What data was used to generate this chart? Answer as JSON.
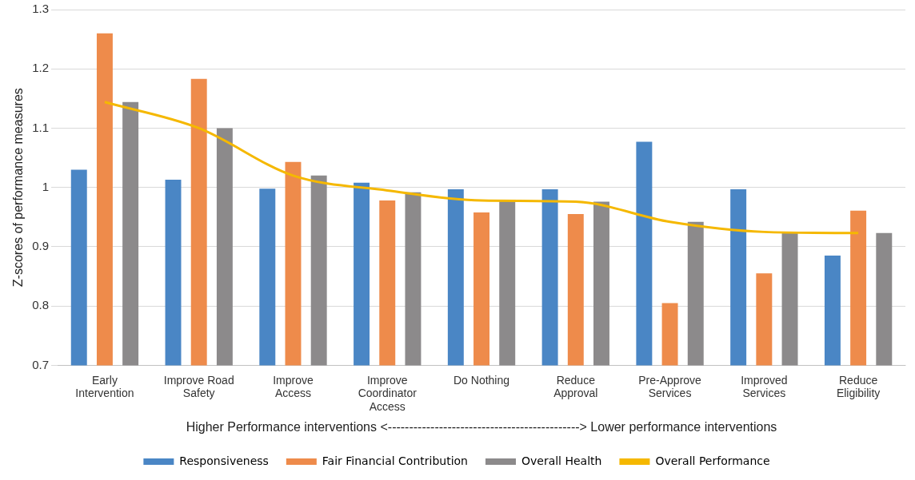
{
  "chart_data": {
    "type": "bar",
    "ylabel": "Z-scores of performance measures",
    "xlabel": "Higher Performance interventions <---------------------------------------------> Lower performance interventions",
    "categories": [
      "Early Intervention",
      "Improve Road Safety",
      "Improve Access",
      "Improve Coordinator Access",
      "Do Nothing",
      "Reduce Approval",
      "Pre-Approve Services",
      "Improved Services",
      "Reduce Eligibility"
    ],
    "series": [
      {
        "name": "Responsiveness",
        "color": "#4a86c5",
        "values": [
          1.03,
          1.013,
          0.998,
          1.008,
          0.997,
          0.997,
          1.077,
          0.997,
          0.885
        ]
      },
      {
        "name": "Fair Financial Contribution",
        "color": "#ee8b4b",
        "values": [
          1.26,
          1.183,
          1.043,
          0.978,
          0.958,
          0.955,
          0.805,
          0.855,
          0.961
        ]
      },
      {
        "name": "Overall Health",
        "color": "#8c8a8b",
        "values": [
          1.144,
          1.1,
          1.02,
          0.992,
          0.977,
          0.976,
          0.942,
          0.925,
          0.923
        ]
      },
      {
        "name": "Overall Performance",
        "type": "line",
        "color": "#f5b800",
        "values": [
          1.144,
          1.1,
          1.02,
          0.995,
          0.978,
          0.976,
          0.942,
          0.925,
          0.923
        ]
      }
    ],
    "ylim": [
      0.7,
      1.3
    ],
    "yticks": [
      0.7,
      0.8,
      0.9,
      1,
      1.1,
      1.2,
      1.3
    ],
    "grid": "y",
    "legend": "bottom",
    "marker": "none",
    "line_style": "solid"
  }
}
